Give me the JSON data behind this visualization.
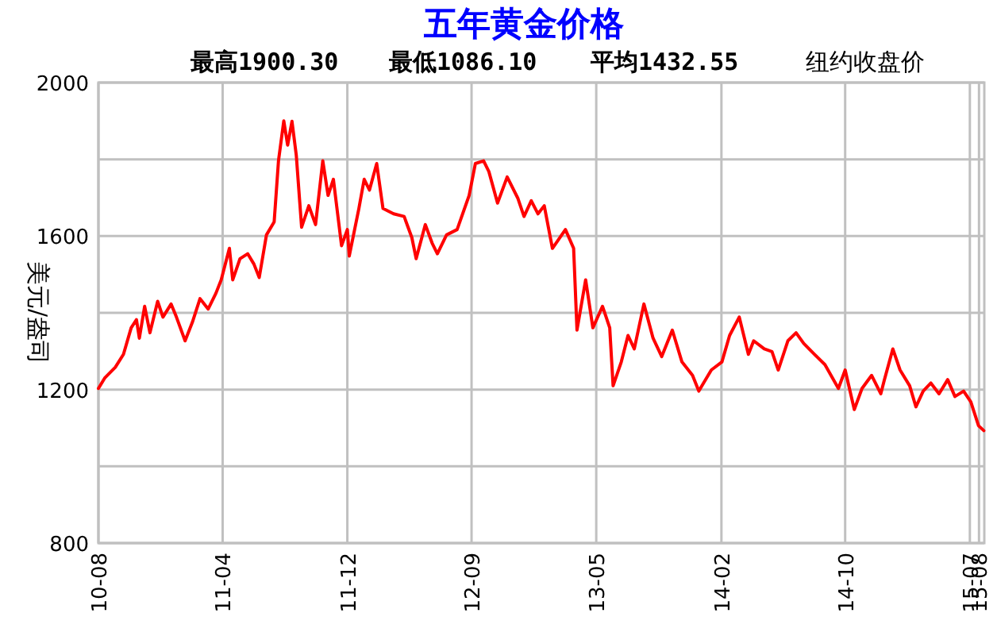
{
  "chart_data": {
    "type": "line",
    "title": "五年黄金价格",
    "ylabel": "美元/盎司",
    "annotations": [
      "最高1900.30",
      "最低1086.10",
      "平均1432.55",
      "纽约收盘价"
    ],
    "color": "#ff0000",
    "grid": true,
    "xlim": [
      "2010-08-01",
      "2015-08-15"
    ],
    "xticks": [
      {
        "value": "2010-08-01",
        "label": "10-08"
      },
      {
        "value": "2011-04-16",
        "label": "11-04"
      },
      {
        "value": "2011-12-31",
        "label": "11-12"
      },
      {
        "value": "2012-09-14",
        "label": "12-09"
      },
      {
        "value": "2013-05-31",
        "label": "13-05"
      },
      {
        "value": "2014-02-15",
        "label": "14-02"
      },
      {
        "value": "2014-10-30",
        "label": "14-10"
      },
      {
        "value": "2015-07-16",
        "label": "15-07"
      },
      {
        "value": "2015-08-04",
        "label": "15-08"
      }
    ],
    "ylim": [
      800,
      2000
    ],
    "yticks": [
      800,
      {
        "value": 1000,
        "label": null
      },
      1200,
      {
        "value": 1400,
        "label": null
      },
      1600,
      {
        "value": 1800,
        "label": null
      },
      2000
    ],
    "x": [
      "2010-08-01",
      "2010-08-14",
      "2010-09-05",
      "2010-09-22",
      "2010-10-08",
      "2010-10-19",
      "2010-10-25",
      "2010-11-05",
      "2010-11-16",
      "2010-12-02",
      "2010-12-13",
      "2010-12-30",
      "2011-01-10",
      "2011-01-28",
      "2011-02-12",
      "2011-02-28",
      "2011-03-17",
      "2011-04-02",
      "2011-04-13",
      "2011-04-30",
      "2011-05-07",
      "2011-05-22",
      "2011-06-07",
      "2011-06-20",
      "2011-07-01",
      "2011-07-16",
      "2011-08-01",
      "2011-08-10",
      "2011-08-21",
      "2011-08-29",
      "2011-09-07",
      "2011-09-16",
      "2011-09-27",
      "2011-10-12",
      "2011-10-26",
      "2011-11-10",
      "2011-11-21",
      "2011-12-02",
      "2011-12-19",
      "2011-12-31",
      "2012-01-04",
      "2012-01-24",
      "2012-02-04",
      "2012-02-15",
      "2012-03-01",
      "2012-03-14",
      "2012-04-05",
      "2012-04-27",
      "2012-05-13",
      "2012-05-22",
      "2012-06-10",
      "2012-06-24",
      "2012-07-05",
      "2012-07-24",
      "2012-08-15",
      "2012-09-09",
      "2012-09-22",
      "2012-10-09",
      "2012-10-20",
      "2012-11-07",
      "2012-11-27",
      "2012-12-19",
      "2013-01-01",
      "2013-01-16",
      "2013-01-30",
      "2013-02-12",
      "2013-03-01",
      "2013-03-28",
      "2013-04-14",
      "2013-04-21",
      "2013-05-09",
      "2013-05-24",
      "2013-06-13",
      "2013-06-28",
      "2013-07-05",
      "2013-07-22",
      "2013-08-05",
      "2013-08-18",
      "2013-09-07",
      "2013-09-26",
      "2013-10-14",
      "2013-11-05",
      "2013-11-25",
      "2013-12-17",
      "2013-12-30",
      "2014-01-25",
      "2014-02-16",
      "2014-03-04",
      "2014-03-24",
      "2014-04-12",
      "2014-04-23",
      "2014-05-15",
      "2014-05-31",
      "2014-06-13",
      "2014-07-03",
      "2014-07-20",
      "2014-08-05",
      "2014-08-27",
      "2014-09-18",
      "2014-10-16",
      "2014-10-30",
      "2014-11-18",
      "2014-12-04",
      "2014-12-24",
      "2015-01-12",
      "2015-01-19",
      "2015-02-06",
      "2015-02-21",
      "2015-03-13",
      "2015-03-26",
      "2015-04-10",
      "2015-04-26",
      "2015-05-13",
      "2015-05-31",
      "2015-06-15",
      "2015-07-03",
      "2015-07-18",
      "2015-08-03",
      "2015-08-14"
    ],
    "values": [
      1203,
      1230,
      1258,
      1292,
      1361,
      1382,
      1334,
      1417,
      1348,
      1430,
      1389,
      1423,
      1389,
      1327,
      1375,
      1437,
      1410,
      1451,
      1486,
      1568,
      1486,
      1541,
      1554,
      1527,
      1492,
      1603,
      1637,
      1796,
      1900,
      1837,
      1899,
      1810,
      1623,
      1679,
      1630,
      1796,
      1706,
      1748,
      1575,
      1617,
      1548,
      1672,
      1748,
      1720,
      1789,
      1672,
      1658,
      1651,
      1596,
      1541,
      1630,
      1582,
      1554,
      1603,
      1617,
      1706,
      1789,
      1796,
      1768,
      1686,
      1754,
      1699,
      1651,
      1692,
      1658,
      1679,
      1568,
      1617,
      1568,
      1355,
      1486,
      1361,
      1417,
      1361,
      1210,
      1272,
      1341,
      1306,
      1423,
      1334,
      1286,
      1355,
      1272,
      1237,
      1196,
      1251,
      1272,
      1341,
      1389,
      1292,
      1327,
      1306,
      1299,
      1251,
      1327,
      1348,
      1320,
      1292,
      1265,
      1203,
      1251,
      1148,
      1203,
      1237,
      1189,
      1223,
      1306,
      1251,
      1210,
      1155,
      1196,
      1217,
      1189,
      1226,
      1182,
      1196,
      1168,
      1106,
      1093
    ]
  }
}
